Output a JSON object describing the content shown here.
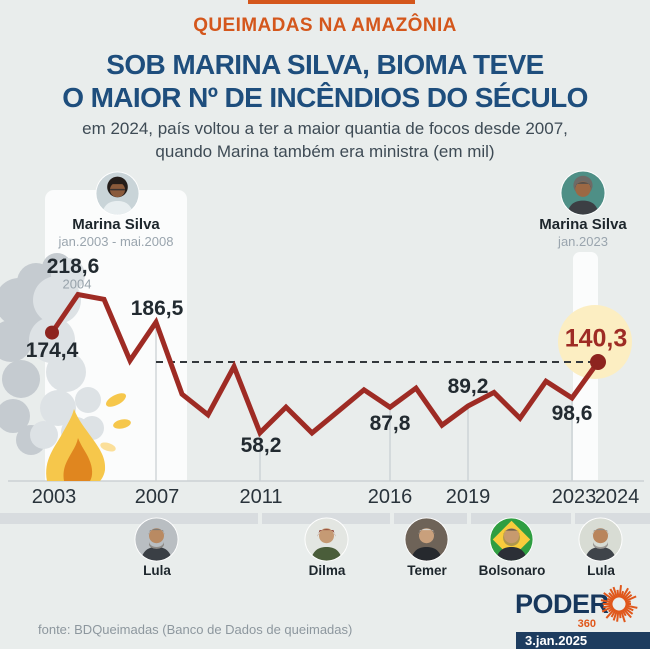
{
  "header": {
    "kicker": "QUEIMADAS NA AMAZÔNIA",
    "title_line1": "SOB MARINA SILVA, BIOMA TEVE",
    "title_line2": "O MAIOR Nº DE INCÊNDIOS DO SÉCULO",
    "subtitle_line1": "em 2024, país voltou a ter a maior quantia de focos desde 2007,",
    "subtitle_line2": "quando Marina também era ministra (em mil)",
    "accent_color": "#d4571c",
    "title_color": "#1e4e7d"
  },
  "ministers": {
    "left": {
      "name": "Marina Silva",
      "period": "jan.2003 - mai.2008"
    },
    "right": {
      "name": "Marina Silva",
      "period": "jan.2023"
    }
  },
  "chart_data": {
    "type": "line",
    "title": "Focos de queimadas na Amazônia (em mil)",
    "x": [
      2003,
      2004,
      2005,
      2006,
      2007,
      2008,
      2009,
      2010,
      2011,
      2012,
      2013,
      2014,
      2015,
      2016,
      2017,
      2018,
      2019,
      2020,
      2021,
      2022,
      2023,
      2024
    ],
    "values": [
      174.4,
      218.6,
      213,
      142,
      186.5,
      103,
      79,
      135,
      58.2,
      88,
      58,
      83,
      108,
      87.8,
      110,
      67,
      89.2,
      105,
      75,
      118,
      98.6,
      140.3
    ],
    "unit": "mil focos",
    "line_color": "#9e2b24",
    "dot_color": "#8d241f",
    "highlight_circle_color": "#fceec2",
    "x_ticks": [
      "2003",
      "2007",
      "2011",
      "2016",
      "2019",
      "2023",
      "2024"
    ],
    "gridline_years": [
      2007,
      2011,
      2016,
      2019,
      2023
    ],
    "dashed_reference": 140.3,
    "endpoint_dot_years": [
      2003,
      2024
    ],
    "labeled_points": [
      {
        "year": 2003,
        "label": "174,4"
      },
      {
        "year": 2004,
        "label": "218,6",
        "sublabel": "2004"
      },
      {
        "year": 2007,
        "label": "186,5"
      },
      {
        "year": 2011,
        "label": "58,2"
      },
      {
        "year": 2016,
        "label": "87,8"
      },
      {
        "year": 2019,
        "label": "89,2"
      },
      {
        "year": 2023,
        "label": "98,6"
      },
      {
        "year": 2024,
        "label": "140,3",
        "highlight": true
      }
    ]
  },
  "presidents": [
    {
      "name": "Lula"
    },
    {
      "name": "Dilma"
    },
    {
      "name": "Temer"
    },
    {
      "name": "Bolsonaro"
    },
    {
      "name": "Lula"
    }
  ],
  "footer": {
    "source": "fonte: BDQueimadas (Banco de Dados de queimadas)",
    "brand": "PODER",
    "brand_suffix": "360",
    "date": "3.jan.2025"
  }
}
